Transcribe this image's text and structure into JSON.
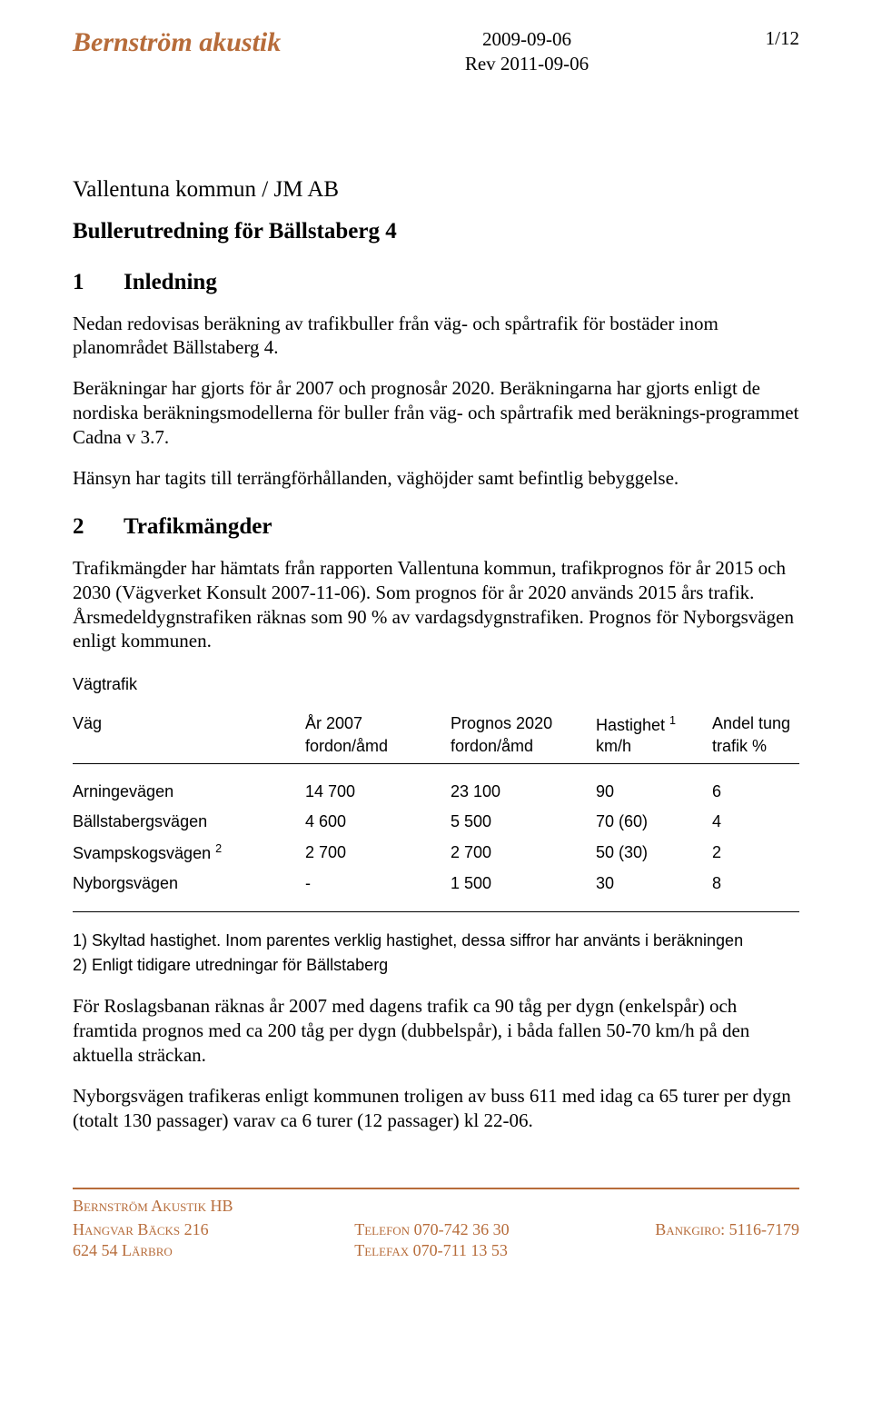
{
  "header": {
    "company": "Bernström akustik",
    "date": "2009-09-06",
    "revision": "Rev 2011-09-06",
    "page_number": "1/12"
  },
  "doc": {
    "client": "Vallentuna kommun / JM AB",
    "title": "Bullerutredning för Bällstaberg 4"
  },
  "sections": {
    "s1": {
      "num": "1",
      "title": "Inledning",
      "p1": "Nedan redovisas beräkning av trafikbuller från väg- och spårtrafik för bostäder inom planområdet Bällstaberg 4.",
      "p2": "Beräkningar har gjorts för år 2007 och prognosår 2020. Beräkningarna har gjorts enligt de nordiska beräkningsmodellerna för buller från väg- och spårtrafik med beräknings-programmet Cadna v 3.7.",
      "p3": "Hänsyn har tagits till terrängförhållanden, väghöjder samt befintlig bebyggelse."
    },
    "s2": {
      "num": "2",
      "title": "Trafikmängder",
      "p1": "Trafikmängder har hämtats från rapporten Vallentuna kommun, trafikprognos för år 2015 och 2030 (Vägverket Konsult 2007-11-06). Som prognos för år 2020 används 2015 års trafik. Årsmedeldygnstrafiken räknas som 90 % av vardagsdygnstrafiken. Prognos för Nyborgsvägen enligt kommunen."
    }
  },
  "traffic": {
    "subhead": "Vägtrafik",
    "columns": {
      "c1": {
        "label": "Väg",
        "unit": ""
      },
      "c2": {
        "label": "År 2007",
        "unit": "fordon/åmd"
      },
      "c3": {
        "label": "Prognos 2020",
        "unit": "fordon/åmd"
      },
      "c4": {
        "label_pre": "Hastighet ",
        "label_sup": "1",
        "unit": "km/h"
      },
      "c5": {
        "label": "Andel tung",
        "unit": "trafik %"
      }
    },
    "rows": [
      {
        "name": "Arningevägen",
        "y2007": "14 700",
        "p2020": "23 100",
        "speed": "90",
        "heavy": "6"
      },
      {
        "name_pre": "Bällstabergsvägen",
        "name_sup": "",
        "y2007": "  4 600",
        "p2020": "  5 500",
        "speed": "70 (60)",
        "heavy": "4"
      },
      {
        "name_pre": "Svampskogsvägen ",
        "name_sup": "2",
        "y2007": "  2 700",
        "p2020": "  2 700",
        "speed": "50 (30)",
        "heavy": "2"
      },
      {
        "name": "Nyborgsvägen",
        "y2007": "       -",
        "p2020": "  1 500",
        "speed": "30",
        "heavy": "8"
      }
    ],
    "notes": {
      "n1": "1)  Skyltad hastighet. Inom parentes verklig hastighet, dessa siffror har använts i beräkningen",
      "n2": "2)  Enligt tidigare utredningar för Bällstaberg"
    }
  },
  "body_after": {
    "p1": "För Roslagsbanan räknas år 2007 med dagens trafik ca 90 tåg per dygn (enkelspår) och framtida prognos med ca 200 tåg per dygn (dubbelspår), i båda fallen 50-70 km/h på den aktuella sträckan.",
    "p2": "Nyborgsvägen trafikeras enligt kommunen troligen av buss 611 med idag ca 65 turer per dygn (totalt 130 passager) varav ca 6 turer (12 passager) kl 22-06."
  },
  "footer": {
    "line1": "Bernström Akustik HB",
    "col1a": "Hangvar Bäcks 216",
    "col1b": "624 54 Lärbro",
    "col2a": "Telefon 070-742 36 30",
    "col2b": "Telefax 070-711 13 53",
    "col3a": "Bankgiro: 5116-7179"
  },
  "colors": {
    "brand": "#b76c3a",
    "text": "#000000",
    "background": "#ffffff"
  }
}
